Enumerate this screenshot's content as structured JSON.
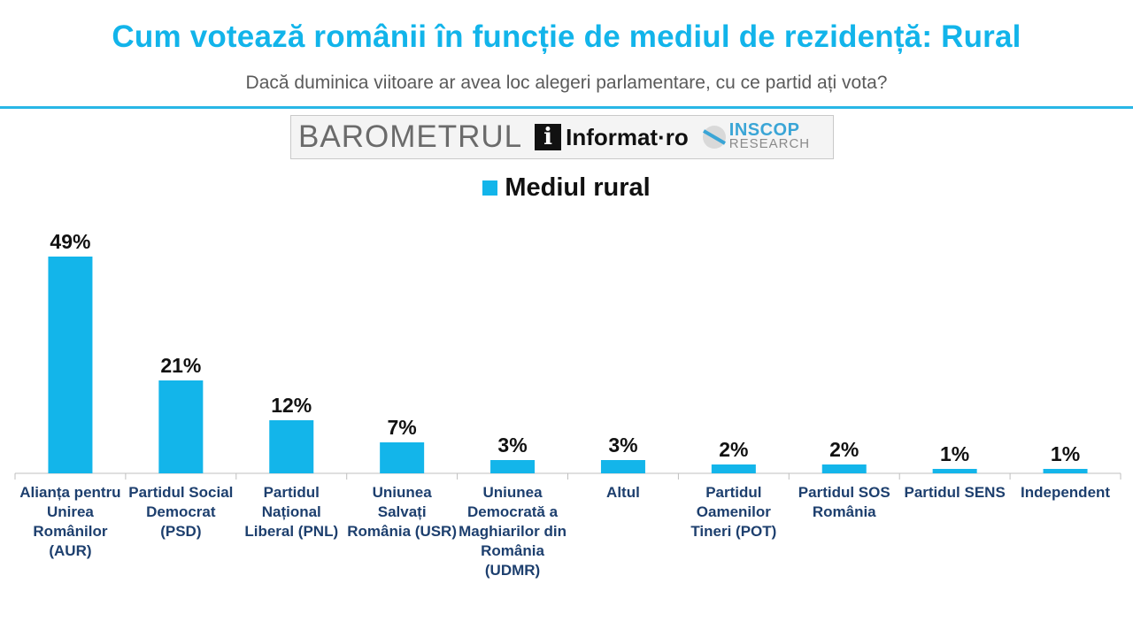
{
  "header": {
    "title": "Cum votează românii în funcție de mediul de rezidență: Rural",
    "subtitle": "Dacă duminica viitoare ar avea loc alegeri parlamentare, cu ce partid ați vota?"
  },
  "logos": {
    "barometrul": "BAROMETRUL",
    "informat_mark": "i",
    "informat": "Informat·ro",
    "inscop": "INSCOP",
    "inscop_sub": "RESEARCH"
  },
  "colors": {
    "accent": "#12b4ea",
    "bar": "#13b5ea",
    "category_text": "#1d3f6e"
  },
  "chart_data": {
    "type": "bar",
    "categories": [
      "Alianța pentru Unirea Românilor (AUR)",
      "Partidul Social Democrat (PSD)",
      "Partidul Național Liberal (PNL)",
      "Uniunea Salvați România (USR)",
      "Uniunea Democrată a Maghiarilor din România (UDMR)",
      "Altul",
      "Partidul Oamenilor Tineri (POT)",
      "Partidul SOS România",
      "Partidul SENS",
      "Independent"
    ],
    "series": [
      {
        "name": "Mediul rural",
        "values": [
          49,
          21,
          12,
          7,
          3,
          3,
          2,
          2,
          1,
          1
        ],
        "labels": [
          "49%",
          "21%",
          "12%",
          "7%",
          "3%",
          "3%",
          "2%",
          "2%",
          "1%",
          "1%"
        ]
      }
    ],
    "ylim": [
      0,
      50
    ],
    "grid": false,
    "legend": "top-center"
  }
}
